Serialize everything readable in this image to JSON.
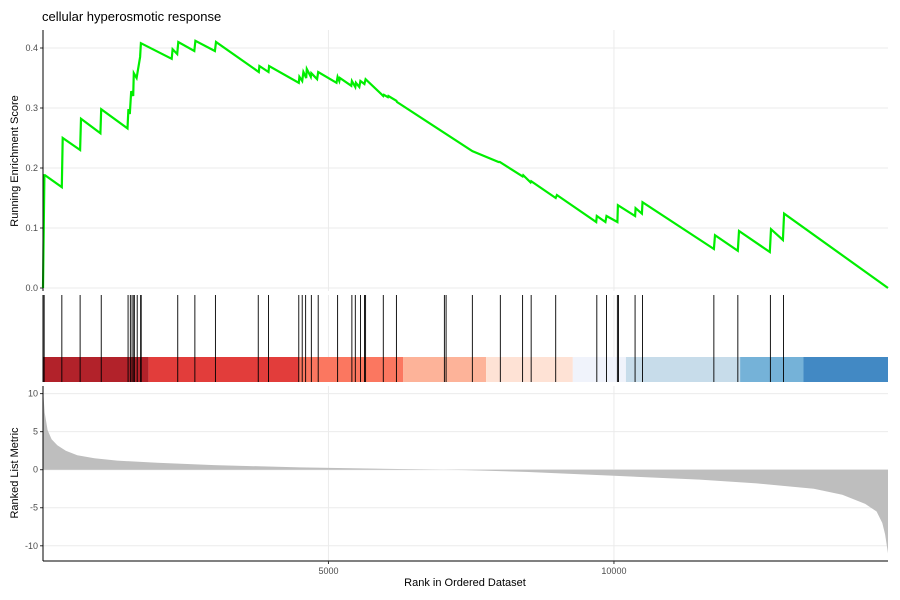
{
  "chart_data": {
    "type": "line",
    "title": "cellular hyperosmotic response",
    "xlabel": "Rank in Ordered Dataset",
    "x_ticks": [
      5000,
      10000
    ],
    "xlim": [
      0,
      14800
    ],
    "grid": true,
    "colors": {
      "enrichment_line": "#00ee00",
      "hit_line": "#000000",
      "metric_area": "#bebebe",
      "axis": "#000000",
      "gridline": "#ebebeb"
    },
    "enrichment": {
      "ylabel": "Running Enrichment Score",
      "y_ticks": [
        0.0,
        0.1,
        0.2,
        0.3,
        0.4
      ],
      "ylim": [
        -0.005,
        0.43
      ],
      "x": [
        0,
        25,
        35,
        330,
        345,
        650,
        665,
        1005,
        1020,
        1480,
        1495,
        1520,
        1545,
        1580,
        1590,
        1640,
        1700,
        1715,
        2255,
        2270,
        2350,
        2370,
        2650,
        2670,
        3010,
        3030,
        3780,
        3790,
        3950,
        3960,
        4480,
        4490,
        4540,
        4560,
        4610,
        4620,
        4690,
        4700,
        4800,
        4820,
        5140,
        5160,
        5190,
        5200,
        5400,
        5410,
        5470,
        5480,
        5540,
        5560,
        5630,
        5650,
        5960,
        5970,
        6040,
        6050,
        6190,
        6200,
        7520,
        7980,
        8000,
        8400,
        8410,
        8540,
        8550,
        8980,
        9000,
        9690,
        9700,
        9850,
        9870,
        10060,
        10070,
        10370,
        10380,
        10490,
        10500,
        11750,
        11770,
        12170,
        12190,
        12730,
        12750,
        12960,
        12980,
        14800
      ],
      "y": [
        0.0,
        0.188,
        0.188,
        0.168,
        0.25,
        0.23,
        0.282,
        0.258,
        0.298,
        0.266,
        0.298,
        0.29,
        0.328,
        0.32,
        0.358,
        0.35,
        0.385,
        0.408,
        0.382,
        0.398,
        0.39,
        0.41,
        0.395,
        0.412,
        0.395,
        0.41,
        0.36,
        0.37,
        0.36,
        0.37,
        0.342,
        0.352,
        0.345,
        0.36,
        0.35,
        0.365,
        0.352,
        0.358,
        0.348,
        0.36,
        0.342,
        0.352,
        0.345,
        0.35,
        0.337,
        0.345,
        0.335,
        0.342,
        0.335,
        0.345,
        0.34,
        0.348,
        0.32,
        0.322,
        0.318,
        0.32,
        0.312,
        0.31,
        0.228,
        0.21,
        0.21,
        0.186,
        0.188,
        0.176,
        0.178,
        0.15,
        0.155,
        0.11,
        0.12,
        0.11,
        0.12,
        0.11,
        0.138,
        0.12,
        0.133,
        0.124,
        0.143,
        0.065,
        0.088,
        0.062,
        0.095,
        0.06,
        0.098,
        0.08,
        0.124,
        0.0
      ]
    },
    "hits": [
      20,
      330,
      650,
      1020,
      1490,
      1530,
      1560,
      1590,
      1600,
      1650,
      1710,
      1720,
      2360,
      2660,
      3020,
      3770,
      3950,
      4480,
      4540,
      4600,
      4700,
      4820,
      5160,
      5410,
      5470,
      5560,
      5630,
      5650,
      5960,
      6190,
      7030,
      7060,
      7520,
      8010,
      8400,
      8550,
      8980,
      9700,
      9870,
      10060,
      10080,
      10370,
      10500,
      11750,
      12170,
      12740,
      12970
    ],
    "color_bar": {
      "ranks": [
        0,
        1850,
        4480,
        6310,
        7760,
        9280,
        10210,
        12210,
        13320,
        14800
      ],
      "colors": [
        "#b2222a",
        "#e23d3b",
        "#fb7760",
        "#fdb399",
        "#fee2d5",
        "#f0f3fb",
        "#c7dcea",
        "#75b2d8",
        "#4289c4"
      ]
    },
    "metric": {
      "ylabel": "Ranked List Metric",
      "y_ticks": [
        10,
        5,
        0,
        -5,
        -10
      ],
      "ylim": [
        -12,
        11
      ],
      "x": [
        0,
        30,
        80,
        150,
        250,
        400,
        600,
        900,
        1300,
        2000,
        3000,
        4500,
        6500,
        7400,
        8500,
        10000,
        11500,
        12500,
        13500,
        14000,
        14400,
        14600,
        14700,
        14750,
        14800
      ],
      "y": [
        10.5,
        7.5,
        5.2,
        4.0,
        3.2,
        2.5,
        1.9,
        1.5,
        1.2,
        0.9,
        0.6,
        0.3,
        0.05,
        -0.05,
        -0.3,
        -0.8,
        -1.3,
        -1.8,
        -2.5,
        -3.3,
        -4.5,
        -5.5,
        -7.0,
        -8.5,
        -11.0
      ]
    }
  }
}
